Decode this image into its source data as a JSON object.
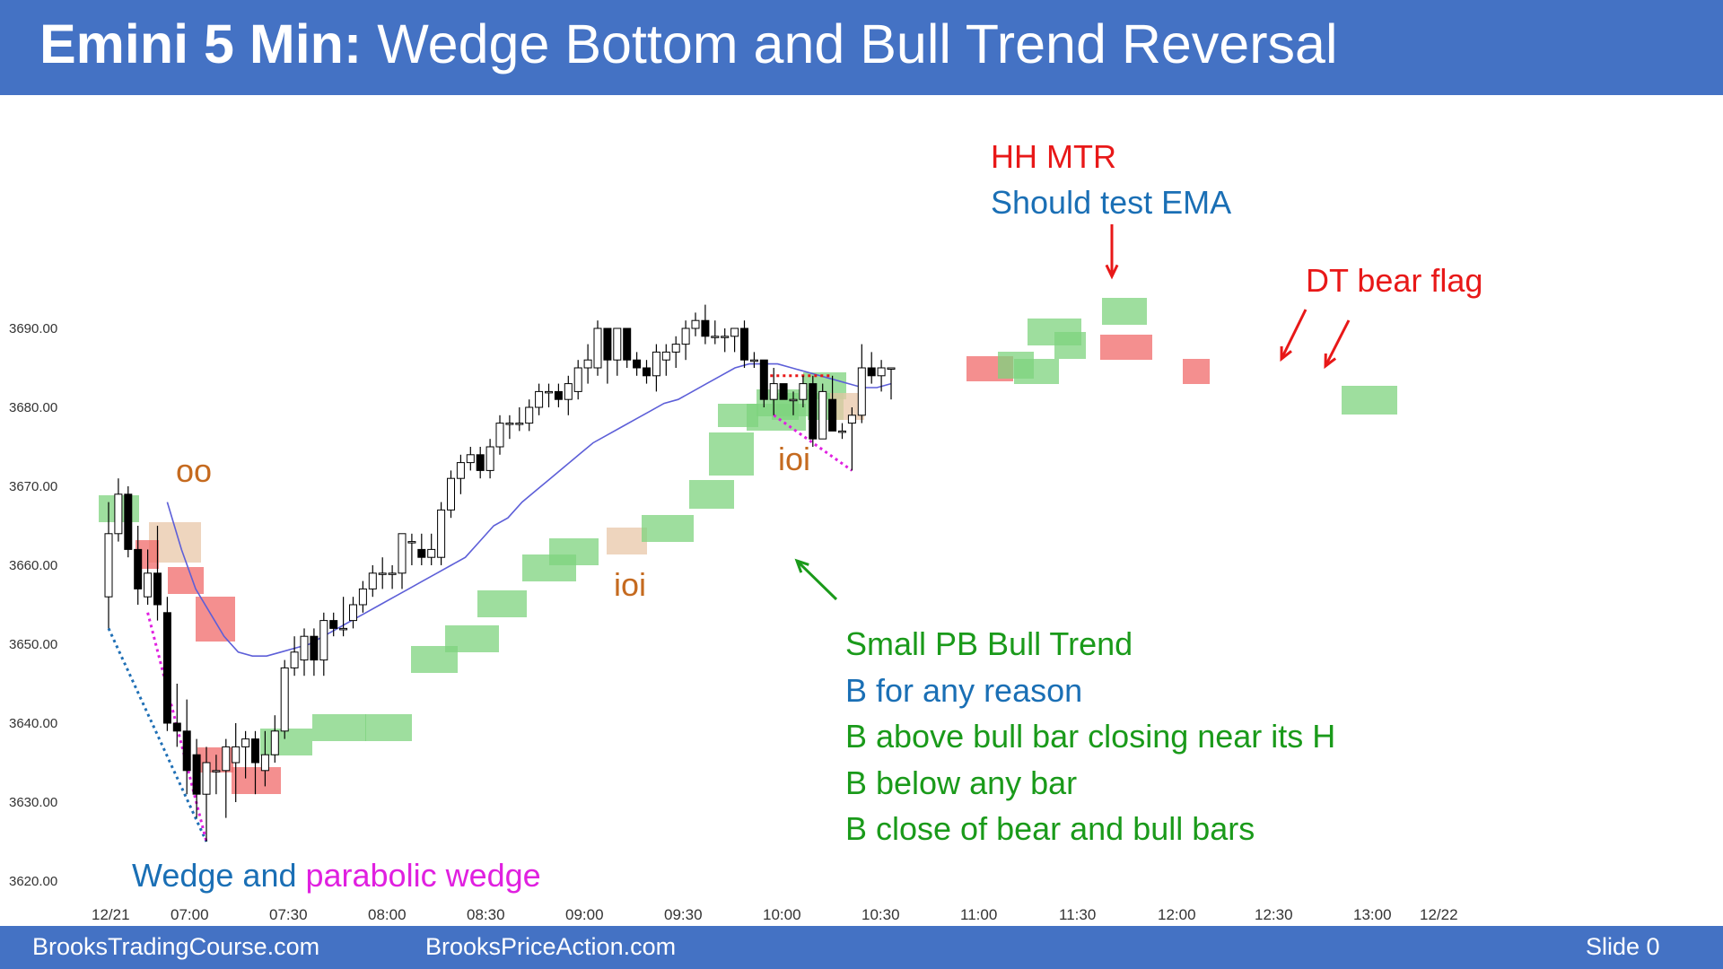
{
  "header": {
    "title_bold": "Emini 5 Min:",
    "title_rest": " Wedge Bottom and Bull Trend Reversal"
  },
  "footer": {
    "left": "BrooksTradingCourse.com",
    "center": "BrooksPriceAction.com",
    "right": "Slide  0"
  },
  "colors": {
    "header_bg": "#4472c4",
    "bull_box": "#7ed37e",
    "bear_box": "#f06a6a",
    "tan_box": "#e8c7a8",
    "ema": "#5d5fd8",
    "wedge_blue": "#1f6fb5",
    "wedge_magenta": "#e020e0",
    "annotation_red": "#e81818",
    "annotation_green": "#1a9a1a",
    "annotation_blue": "#1a6fb5",
    "annotation_orange": "#c56a1f"
  },
  "chart_data": {
    "type": "candlestick",
    "yticks": [
      "3690.00",
      "3680.00",
      "3670.00",
      "3660.00",
      "3650.00",
      "3640.00",
      "3630.00",
      "3620.00"
    ],
    "ylim": [
      3620,
      3690
    ],
    "xticks": [
      "12/21",
      "07:00",
      "07:30",
      "08:00",
      "08:30",
      "09:00",
      "09:30",
      "10:00",
      "10:30",
      "11:00",
      "11:30",
      "12:00",
      "12:30",
      "13:00",
      "12/22"
    ],
    "bars": [
      {
        "t": "06:35",
        "o": 3656,
        "h": 3668,
        "l": 3652,
        "c": 3664
      },
      {
        "t": "06:40",
        "o": 3664,
        "h": 3671,
        "l": 3663,
        "c": 3669
      },
      {
        "t": "06:45",
        "o": 3669,
        "h": 3670,
        "l": 3661,
        "c": 3662
      },
      {
        "t": "06:50",
        "o": 3662,
        "h": 3665,
        "l": 3655,
        "c": 3657
      },
      {
        "t": "06:55",
        "o": 3656,
        "h": 3662,
        "l": 3655,
        "c": 3659
      },
      {
        "t": "07:00",
        "o": 3659,
        "h": 3665,
        "l": 3653,
        "c": 3655
      },
      {
        "t": "07:05",
        "o": 3654,
        "h": 3656,
        "l": 3639,
        "c": 3640
      },
      {
        "t": "07:10",
        "o": 3640,
        "h": 3645,
        "l": 3637,
        "c": 3639
      },
      {
        "t": "07:15",
        "o": 3639,
        "h": 3643,
        "l": 3631,
        "c": 3634
      },
      {
        "t": "07:20",
        "o": 3636,
        "h": 3638,
        "l": 3628,
        "c": 3631
      },
      {
        "t": "07:25",
        "o": 3631,
        "h": 3637,
        "l": 3625,
        "c": 3635
      },
      {
        "t": "07:30",
        "o": 3634,
        "h": 3636,
        "l": 3631,
        "c": 3634
      },
      {
        "t": "07:35",
        "o": 3634,
        "h": 3638,
        "l": 3628,
        "c": 3637
      },
      {
        "t": "07:40",
        "o": 3635,
        "h": 3640,
        "l": 3630,
        "c": 3637
      },
      {
        "t": "07:45",
        "o": 3637,
        "h": 3639,
        "l": 3633,
        "c": 3638
      },
      {
        "t": "07:50",
        "o": 3638,
        "h": 3639,
        "l": 3631,
        "c": 3635
      },
      {
        "t": "07:55",
        "o": 3634,
        "h": 3639,
        "l": 3632,
        "c": 3636
      },
      {
        "t": "08:00",
        "o": 3636,
        "h": 3641,
        "l": 3635,
        "c": 3639
      },
      {
        "t": "08:05",
        "o": 3639,
        "h": 3648,
        "l": 3638,
        "c": 3647
      },
      {
        "t": "08:10",
        "o": 3647,
        "h": 3651,
        "l": 3646,
        "c": 3649
      },
      {
        "t": "08:15",
        "o": 3648,
        "h": 3652,
        "l": 3646,
        "c": 3651
      },
      {
        "t": "08:20",
        "o": 3651,
        "h": 3652,
        "l": 3646,
        "c": 3648
      },
      {
        "t": "08:25",
        "o": 3648,
        "h": 3654,
        "l": 3646,
        "c": 3653
      },
      {
        "t": "08:30",
        "o": 3653,
        "h": 3654,
        "l": 3651,
        "c": 3652
      },
      {
        "t": "08:35",
        "o": 3652,
        "h": 3656,
        "l": 3651,
        "c": 3652
      },
      {
        "t": "08:40",
        "o": 3653,
        "h": 3656,
        "l": 3652,
        "c": 3655
      },
      {
        "t": "08:45",
        "o": 3655,
        "h": 3658,
        "l": 3654,
        "c": 3657
      },
      {
        "t": "08:50",
        "o": 3657,
        "h": 3660,
        "l": 3656,
        "c": 3659
      },
      {
        "t": "08:55",
        "o": 3659,
        "h": 3661,
        "l": 3657,
        "c": 3659
      },
      {
        "t": "09:00",
        "o": 3659,
        "h": 3660,
        "l": 3657,
        "c": 3659
      },
      {
        "t": "09:05",
        "o": 3659,
        "h": 3664,
        "l": 3657,
        "c": 3664
      },
      {
        "t": "09:10",
        "o": 3663,
        "h": 3664,
        "l": 3660,
        "c": 3663
      },
      {
        "t": "09:15",
        "o": 3662,
        "h": 3664,
        "l": 3660,
        "c": 3661
      },
      {
        "t": "09:20",
        "o": 3661,
        "h": 3664,
        "l": 3660,
        "c": 3662
      },
      {
        "t": "09:25",
        "o": 3661,
        "h": 3668,
        "l": 3660,
        "c": 3667
      },
      {
        "t": "09:30",
        "o": 3667,
        "h": 3672,
        "l": 3666,
        "c": 3671
      },
      {
        "t": "09:35",
        "o": 3671,
        "h": 3674,
        "l": 3669,
        "c": 3673
      },
      {
        "t": "09:40",
        "o": 3673,
        "h": 3675,
        "l": 3672,
        "c": 3674
      },
      {
        "t": "09:45",
        "o": 3674,
        "h": 3675,
        "l": 3671,
        "c": 3672
      },
      {
        "t": "09:50",
        "o": 3672,
        "h": 3676,
        "l": 3671,
        "c": 3675
      },
      {
        "t": "09:55",
        "o": 3675,
        "h": 3679,
        "l": 3674,
        "c": 3678
      },
      {
        "t": "10:00",
        "o": 3678,
        "h": 3679,
        "l": 3676,
        "c": 3678
      },
      {
        "t": "10:05",
        "o": 3678,
        "h": 3680,
        "l": 3677,
        "c": 3678
      },
      {
        "t": "10:10",
        "o": 3678,
        "h": 3681,
        "l": 3677,
        "c": 3680
      },
      {
        "t": "10:15",
        "o": 3680,
        "h": 3683,
        "l": 3679,
        "c": 3682
      },
      {
        "t": "10:20",
        "o": 3682,
        "h": 3683,
        "l": 3680,
        "c": 3682
      },
      {
        "t": "10:25",
        "o": 3682,
        "h": 3683,
        "l": 3680,
        "c": 3681
      },
      {
        "t": "10:30",
        "o": 3681,
        "h": 3684,
        "l": 3679,
        "c": 3683
      },
      {
        "t": "10:35",
        "o": 3682,
        "h": 3686,
        "l": 3681,
        "c": 3685
      },
      {
        "t": "10:40",
        "o": 3685,
        "h": 3688,
        "l": 3683,
        "c": 3686
      },
      {
        "t": "10:45",
        "o": 3685,
        "h": 3691,
        "l": 3684,
        "c": 3690
      },
      {
        "t": "10:50",
        "o": 3690,
        "h": 3690,
        "l": 3683,
        "c": 3686
      },
      {
        "t": "10:55",
        "o": 3686,
        "h": 3690,
        "l": 3684,
        "c": 3690
      },
      {
        "t": "11:00",
        "o": 3690,
        "h": 3690,
        "l": 3685,
        "c": 3686
      },
      {
        "t": "11:05",
        "o": 3686,
        "h": 3687,
        "l": 3684,
        "c": 3685
      },
      {
        "t": "11:10",
        "o": 3685,
        "h": 3686,
        "l": 3683,
        "c": 3684
      },
      {
        "t": "11:15",
        "o": 3684,
        "h": 3688,
        "l": 3682,
        "c": 3687
      },
      {
        "t": "11:20",
        "o": 3686,
        "h": 3688,
        "l": 3684,
        "c": 3687
      },
      {
        "t": "11:25",
        "o": 3687,
        "h": 3689,
        "l": 3685,
        "c": 3688
      },
      {
        "t": "11:30",
        "o": 3688,
        "h": 3691,
        "l": 3686,
        "c": 3690
      },
      {
        "t": "11:35",
        "o": 3690,
        "h": 3692,
        "l": 3689,
        "c": 3691
      },
      {
        "t": "11:40",
        "o": 3691,
        "h": 3693,
        "l": 3688,
        "c": 3689
      },
      {
        "t": "11:45",
        "o": 3689,
        "h": 3691,
        "l": 3688,
        "c": 3689
      },
      {
        "t": "11:50",
        "o": 3689,
        "h": 3690,
        "l": 3687,
        "c": 3689
      },
      {
        "t": "11:55",
        "o": 3689,
        "h": 3690,
        "l": 3687,
        "c": 3690
      },
      {
        "t": "12:00",
        "o": 3690,
        "h": 3691,
        "l": 3685,
        "c": 3686
      },
      {
        "t": "12:05",
        "o": 3686,
        "h": 3687,
        "l": 3685,
        "c": 3686
      },
      {
        "t": "12:10",
        "o": 3686,
        "h": 3686,
        "l": 3680,
        "c": 3681
      },
      {
        "t": "12:15",
        "o": 3681,
        "h": 3685,
        "l": 3679,
        "c": 3683
      },
      {
        "t": "12:20",
        "o": 3683,
        "h": 3683,
        "l": 3681,
        "c": 3681
      },
      {
        "t": "12:25",
        "o": 3681,
        "h": 3682,
        "l": 3679,
        "c": 3681
      },
      {
        "t": "12:30",
        "o": 3681,
        "h": 3684,
        "l": 3680,
        "c": 3683
      },
      {
        "t": "12:35",
        "o": 3683,
        "h": 3684,
        "l": 3675,
        "c": 3676
      },
      {
        "t": "12:40",
        "o": 3676,
        "h": 3683,
        "l": 3676,
        "c": 3682
      },
      {
        "t": "12:45",
        "o": 3681,
        "h": 3684,
        "l": 3677,
        "c": 3677
      },
      {
        "t": "12:50",
        "o": 3677,
        "h": 3678,
        "l": 3676,
        "c": 3677
      },
      {
        "t": "12:55",
        "o": 3678,
        "h": 3680,
        "l": 3672,
        "c": 3679
      },
      {
        "t": "13:00",
        "o": 3679,
        "h": 3688,
        "l": 3678,
        "c": 3685
      },
      {
        "t": "13:05",
        "o": 3685,
        "h": 3687,
        "l": 3683,
        "c": 3684
      },
      {
        "t": "13:10",
        "o": 3684,
        "h": 3686,
        "l": 3682,
        "c": 3685
      },
      {
        "t": "13:15",
        "o": 3685,
        "h": 3685,
        "l": 3681,
        "c": 3685
      }
    ],
    "ema": [
      3668,
      3662,
      3657,
      3654,
      3651,
      3649,
      3648.5,
      3648.5,
      3649,
      3649.5,
      3650,
      3651,
      3652,
      3653,
      3654,
      3655,
      3656,
      3657,
      3658,
      3659,
      3660,
      3661,
      3663,
      3665,
      3666,
      3668,
      3669.5,
      3671,
      3672.5,
      3674,
      3675.5,
      3676.5,
      3677.5,
      3678.5,
      3679.5,
      3680.5,
      3681,
      3682,
      3683,
      3684,
      3685,
      3685.5,
      3685.5,
      3685.5,
      3685,
      3684.5,
      3684,
      3683.5,
      3683,
      3682.5,
      3682.5,
      3683
    ],
    "annotations": {
      "hh_mtr": "HH MTR",
      "should_test_ema": "Should test EMA",
      "dt_bear_flag": "DT bear flag",
      "oo": "oo",
      "ioi_1": "ioi",
      "ioi_2": "ioi",
      "small_pb": "Small PB Bull Trend",
      "b_any": "B for any reason",
      "b_above": "B above bull bar closing near its H",
      "b_below": "B below any bar",
      "b_close": "B close of bear and bull bars",
      "wedge": "Wedge and",
      "parabolic": "parabolic wedge"
    }
  }
}
